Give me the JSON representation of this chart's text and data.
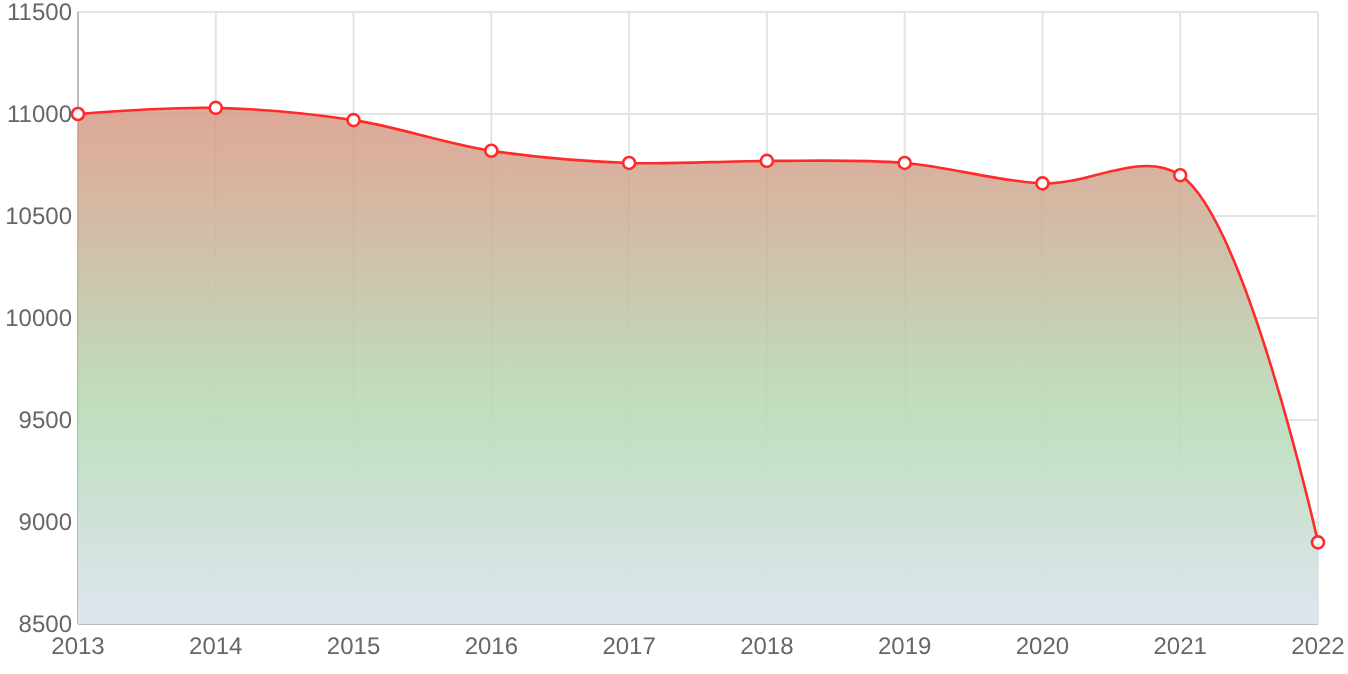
{
  "chart_data": {
    "type": "area",
    "x": [
      2013,
      2014,
      2015,
      2016,
      2017,
      2018,
      2019,
      2020,
      2021,
      2022
    ],
    "series": [
      {
        "color": "#ff2a2a",
        "values": [
          11000,
          11030,
          10970,
          10820,
          10760,
          10770,
          10760,
          10660,
          10700,
          8900
        ]
      }
    ],
    "xlim": [
      2013,
      2022
    ],
    "xticks": [
      2013,
      2014,
      2015,
      2016,
      2017,
      2018,
      2019,
      2020,
      2021,
      2022
    ],
    "ylim": [
      8500,
      11500
    ],
    "yticks": [
      8500,
      9000,
      9500,
      10000,
      10500,
      11000,
      11500
    ],
    "grid": true,
    "marker": "circle"
  }
}
